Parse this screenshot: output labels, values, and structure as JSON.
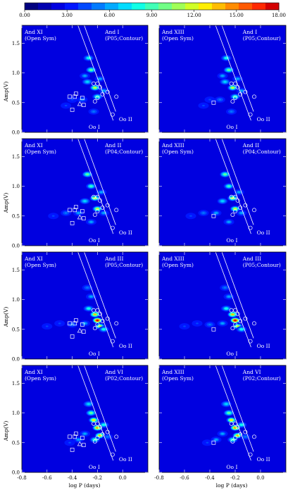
{
  "colorbar": {
    "ticks": [
      "0.00",
      "3.00",
      "6.00",
      "9.00",
      "12.00",
      "15.00",
      "18.00"
    ],
    "min": 0,
    "max": 18,
    "colors": [
      "#00007f",
      "#0000b0",
      "#0000e0",
      "#0016ff",
      "#0048ff",
      "#007aff",
      "#00aaff",
      "#00dcff",
      "#10ffe6",
      "#40ffb6",
      "#70ff86",
      "#a0ff56",
      "#d0ff26",
      "#ffee00",
      "#ffbd00",
      "#ff8c00",
      "#ff5a00",
      "#ff2900",
      "#d40000"
    ]
  },
  "axes": {
    "xlabel": "log P (days)",
    "ylabel": "Amp(V)",
    "xlim": [
      -0.8,
      0.2
    ],
    "ylim": [
      0,
      1.8
    ],
    "xticks": [
      "-0.8",
      "-0.6",
      "-0.4",
      "-0.2",
      "0.0"
    ],
    "yticks": [
      "0.0",
      "0.5",
      "1.0",
      "1.5"
    ],
    "oo1_label": "Oo I",
    "oo2_label": "Oo II"
  },
  "symbols": {
    "and_xi": {
      "squares": [
        [
          -0.37,
          0.65
        ],
        [
          -0.42,
          0.6
        ],
        [
          -0.38,
          0.6
        ],
        [
          -0.32,
          0.58
        ],
        [
          -0.31,
          0.46
        ],
        [
          -0.4,
          0.38
        ]
      ],
      "triangles": [
        [
          -0.34,
          0.48
        ]
      ]
    },
    "and_xiii": {
      "squares": [
        [
          -0.37,
          0.5
        ]
      ],
      "triangles": []
    },
    "circles": [
      [
        -0.23,
        0.82
      ],
      [
        -0.2,
        0.82
      ],
      [
        -0.18,
        0.76
      ],
      [
        -0.12,
        0.68
      ],
      [
        -0.16,
        0.64
      ],
      [
        -0.2,
        0.58
      ],
      [
        -0.22,
        0.52
      ],
      [
        -0.05,
        0.6
      ],
      [
        -0.08,
        0.3
      ]
    ]
  },
  "chart_data": [
    {
      "type": "heatmap",
      "panel": "left-1",
      "left_title": [
        "And XI",
        "(Open Sym)"
      ],
      "right_title": [
        "And I",
        "(P05;Contour)"
      ],
      "peaks": [
        [
          -0.27,
          1.25,
          8
        ],
        [
          -0.25,
          1.05,
          10
        ],
        [
          -0.22,
          0.75,
          12
        ],
        [
          -0.2,
          0.6,
          9
        ],
        [
          -0.28,
          0.85,
          7
        ],
        [
          -0.15,
          0.7,
          6
        ],
        [
          -0.32,
          0.55,
          5
        ],
        [
          -0.4,
          0.55,
          4
        ],
        [
          -0.45,
          0.45,
          4
        ],
        [
          -0.18,
          0.9,
          6
        ],
        [
          -0.23,
          0.35,
          5
        ],
        [
          -0.3,
          0.95,
          6
        ]
      ]
    },
    {
      "type": "heatmap",
      "panel": "right-1",
      "left_title": [
        "And XIII",
        "(Open Sym)"
      ],
      "right_title": [
        "And I",
        "(P05;Contour)"
      ],
      "peaks": [
        [
          -0.27,
          1.25,
          8
        ],
        [
          -0.25,
          1.05,
          10
        ],
        [
          -0.22,
          0.75,
          12
        ],
        [
          -0.2,
          0.6,
          9
        ],
        [
          -0.28,
          0.85,
          7
        ],
        [
          -0.15,
          0.7,
          6
        ],
        [
          -0.32,
          0.55,
          5
        ],
        [
          -0.4,
          0.55,
          4
        ],
        [
          -0.45,
          0.45,
          4
        ],
        [
          -0.18,
          0.9,
          6
        ],
        [
          -0.23,
          0.35,
          5
        ],
        [
          -0.3,
          0.95,
          6
        ]
      ]
    },
    {
      "type": "heatmap",
      "panel": "left-2",
      "left_title": [
        "And XI",
        "(Open Sym)"
      ],
      "right_title": [
        "And II",
        "(P04;Contour)"
      ],
      "peaks": [
        [
          -0.28,
          1.2,
          10
        ],
        [
          -0.25,
          1.0,
          9
        ],
        [
          -0.22,
          0.8,
          12
        ],
        [
          -0.2,
          0.62,
          12
        ],
        [
          -0.3,
          0.75,
          7
        ],
        [
          -0.35,
          0.55,
          6
        ],
        [
          -0.45,
          0.55,
          5
        ],
        [
          -0.15,
          0.55,
          6
        ],
        [
          -0.25,
          0.4,
          6
        ],
        [
          -0.55,
          0.5,
          4
        ],
        [
          -0.17,
          0.9,
          6
        ]
      ]
    },
    {
      "type": "heatmap",
      "panel": "right-2",
      "left_title": [
        "And XIII",
        "(Open Sym)"
      ],
      "right_title": [
        "And II",
        "(P04;Contour)"
      ],
      "peaks": [
        [
          -0.28,
          1.2,
          10
        ],
        [
          -0.25,
          1.0,
          9
        ],
        [
          -0.22,
          0.8,
          12
        ],
        [
          -0.2,
          0.62,
          12
        ],
        [
          -0.3,
          0.75,
          7
        ],
        [
          -0.35,
          0.55,
          6
        ],
        [
          -0.45,
          0.55,
          5
        ],
        [
          -0.15,
          0.55,
          6
        ],
        [
          -0.25,
          0.4,
          6
        ],
        [
          -0.55,
          0.5,
          4
        ],
        [
          -0.17,
          0.9,
          6
        ]
      ]
    },
    {
      "type": "heatmap",
      "panel": "left-3",
      "left_title": [
        "And XI",
        "(Open Sym)"
      ],
      "right_title": [
        "And III",
        "(P05;Contour)"
      ],
      "peaks": [
        [
          -0.2,
          0.65,
          18
        ],
        [
          -0.22,
          0.75,
          14
        ],
        [
          -0.18,
          0.55,
          12
        ],
        [
          -0.15,
          0.5,
          8
        ],
        [
          -0.27,
          0.85,
          8
        ],
        [
          -0.3,
          0.6,
          6
        ],
        [
          -0.4,
          0.58,
          5
        ],
        [
          -0.5,
          0.6,
          4
        ],
        [
          -0.6,
          0.55,
          4
        ],
        [
          -0.25,
          1.05,
          6
        ],
        [
          -0.28,
          1.2,
          5
        ]
      ]
    },
    {
      "type": "heatmap",
      "panel": "right-3",
      "left_title": [
        "And XIII",
        "(Open Sym)"
      ],
      "right_title": [
        "And III",
        "(P05;Contour)"
      ],
      "peaks": [
        [
          -0.2,
          0.65,
          18
        ],
        [
          -0.22,
          0.75,
          14
        ],
        [
          -0.18,
          0.55,
          12
        ],
        [
          -0.15,
          0.5,
          8
        ],
        [
          -0.27,
          0.85,
          8
        ],
        [
          -0.3,
          0.6,
          6
        ],
        [
          -0.4,
          0.58,
          5
        ],
        [
          -0.5,
          0.6,
          4
        ],
        [
          -0.6,
          0.55,
          4
        ],
        [
          -0.25,
          1.05,
          6
        ],
        [
          -0.28,
          1.2,
          5
        ]
      ]
    },
    {
      "type": "heatmap",
      "panel": "left-4",
      "left_title": [
        "And XI",
        "(Open Sym)"
      ],
      "right_title": [
        "And VI",
        "(P02;Contour)"
      ],
      "peaks": [
        [
          -0.25,
          1.0,
          10
        ],
        [
          -0.23,
          0.88,
          13
        ],
        [
          -0.2,
          0.75,
          15
        ],
        [
          -0.18,
          0.62,
          14
        ],
        [
          -0.27,
          1.15,
          7
        ],
        [
          -0.15,
          0.8,
          8
        ],
        [
          -0.22,
          0.55,
          9
        ],
        [
          -0.3,
          0.65,
          6
        ],
        [
          -0.35,
          0.55,
          6
        ],
        [
          -0.42,
          0.5,
          4
        ],
        [
          -0.12,
          0.6,
          5
        ]
      ]
    },
    {
      "type": "heatmap",
      "panel": "right-4",
      "left_title": [
        "And XIII",
        "(Open Sym)"
      ],
      "right_title": [
        "And VI",
        "(P02;Contour)"
      ],
      "peaks": [
        [
          -0.25,
          1.0,
          10
        ],
        [
          -0.23,
          0.88,
          13
        ],
        [
          -0.2,
          0.75,
          15
        ],
        [
          -0.18,
          0.62,
          14
        ],
        [
          -0.27,
          1.15,
          7
        ],
        [
          -0.15,
          0.8,
          8
        ],
        [
          -0.22,
          0.55,
          9
        ],
        [
          -0.3,
          0.65,
          6
        ],
        [
          -0.35,
          0.55,
          6
        ],
        [
          -0.42,
          0.5,
          4
        ],
        [
          -0.12,
          0.6,
          5
        ]
      ]
    }
  ]
}
